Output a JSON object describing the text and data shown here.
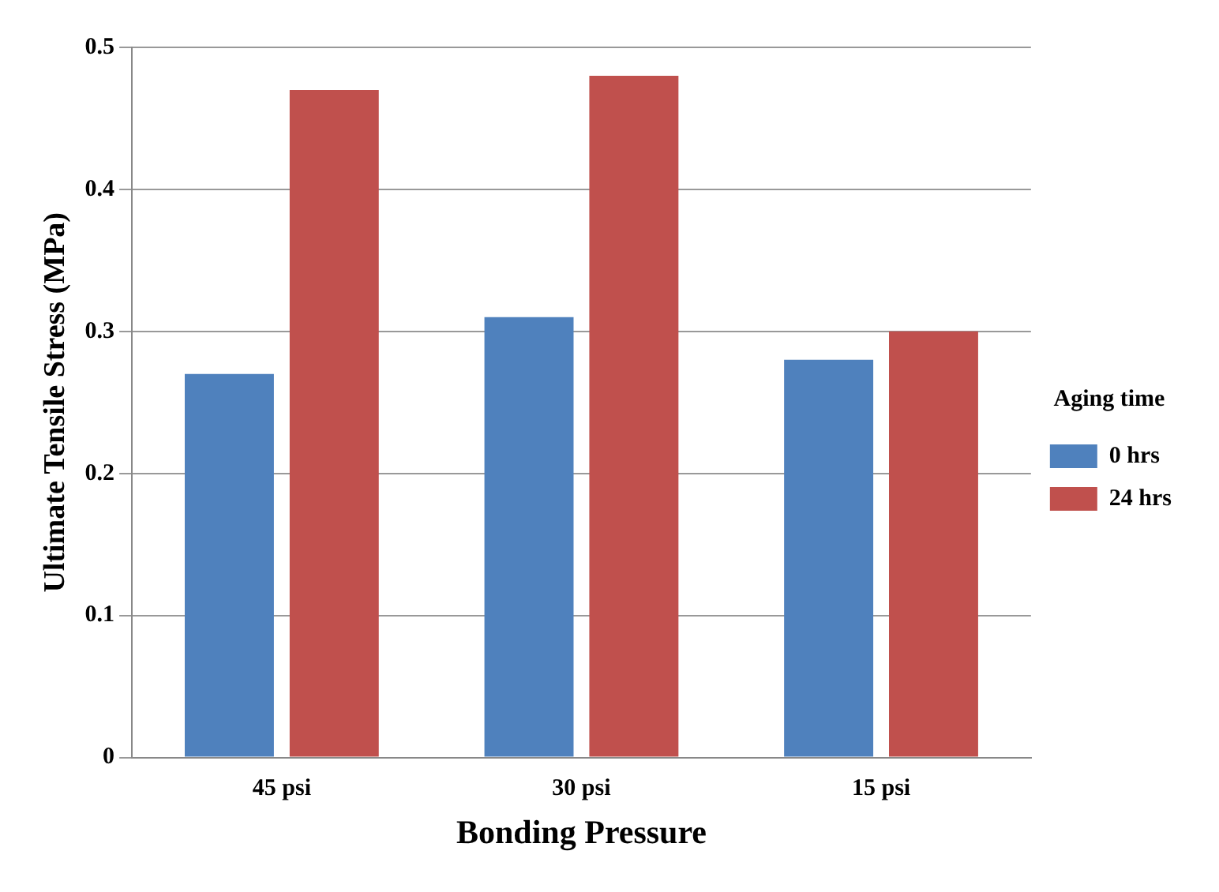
{
  "chart_data": {
    "type": "bar",
    "xlabel": "Bonding Pressure",
    "ylabel": "Ultimate Tensile Stress (MPa)",
    "legend_title": "Aging time",
    "categories": [
      "45 psi",
      "30 psi",
      "15 psi"
    ],
    "series": [
      {
        "name": "0 hrs",
        "color": "#4f81bd",
        "values": [
          0.27,
          0.31,
          0.28
        ]
      },
      {
        "name": "24 hrs",
        "color": "#c0504d",
        "values": [
          0.47,
          0.48,
          0.3
        ]
      }
    ],
    "ylim": [
      0,
      0.5
    ],
    "yticks": [
      0,
      0.1,
      0.2,
      0.3,
      0.4,
      0.5
    ],
    "grid": "y",
    "legend": "right"
  }
}
